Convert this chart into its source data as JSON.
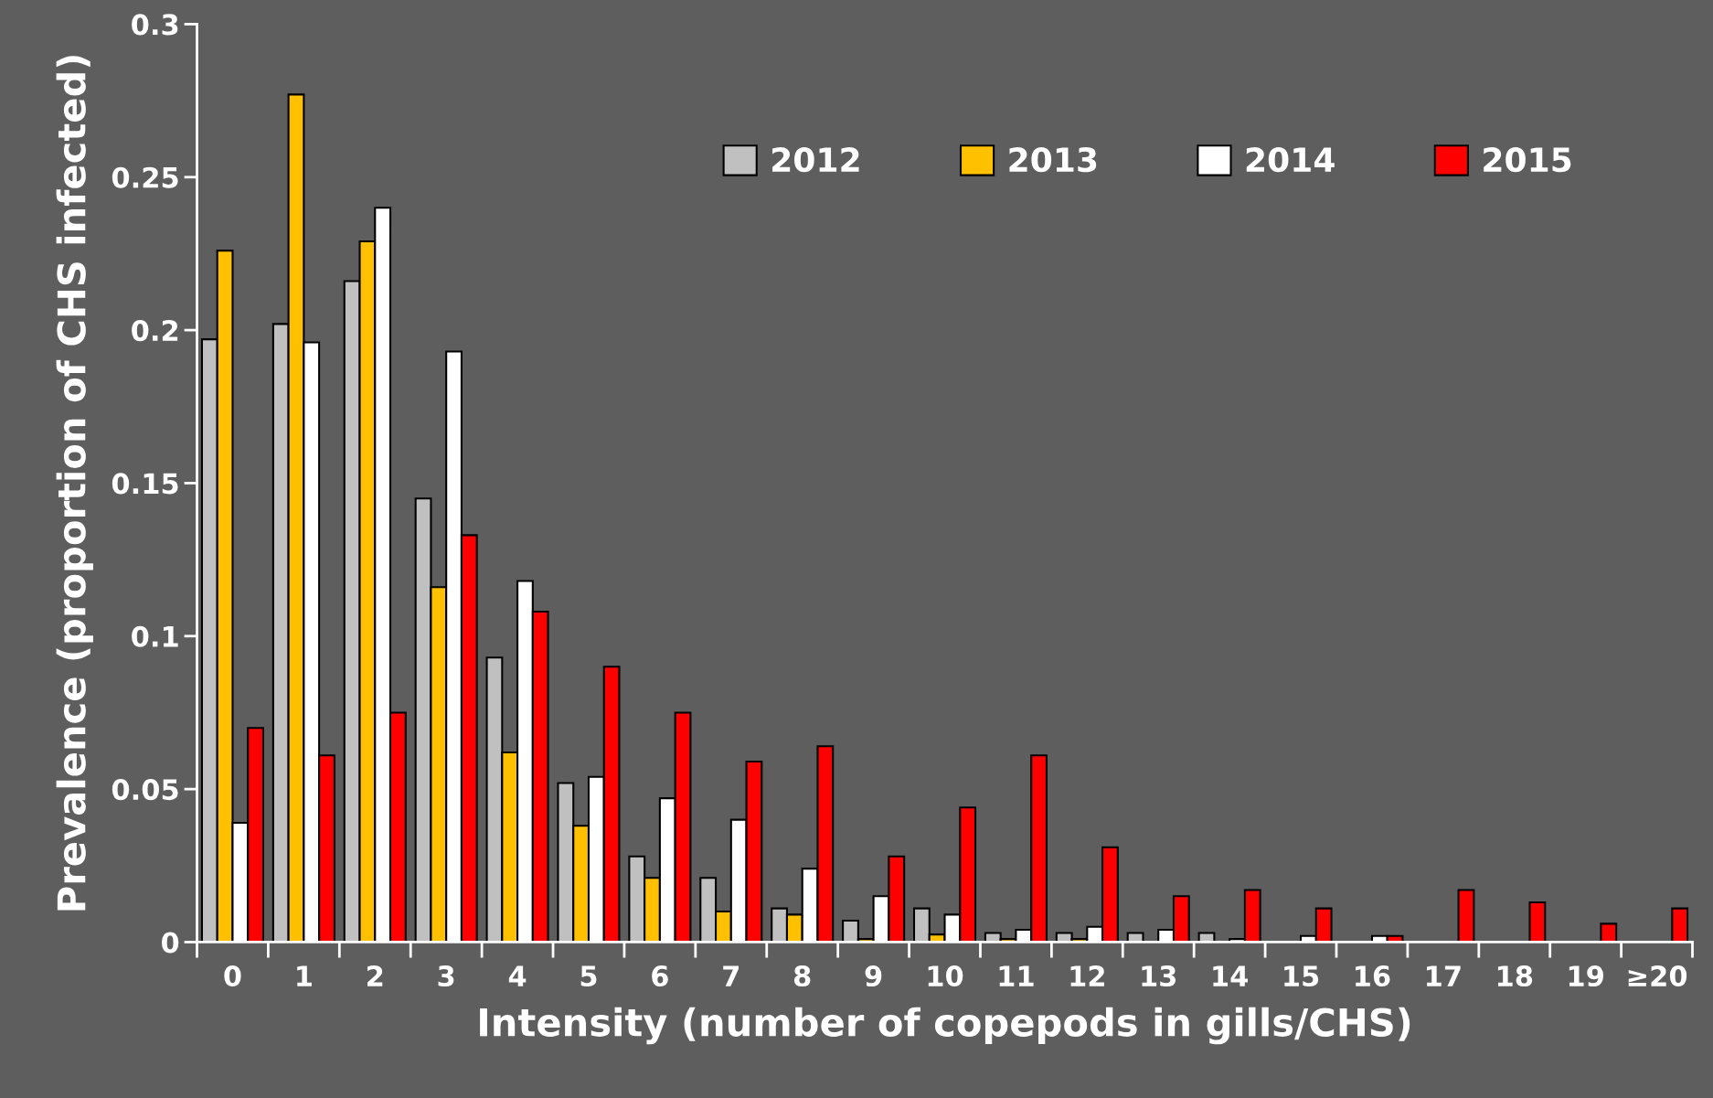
{
  "chart_data": {
    "type": "bar",
    "xlabel": "Intensity (number of copepods in gills/CHS)",
    "ylabel": "Prevalence (proportion of CHS infected)",
    "categories": [
      "0",
      "1",
      "2",
      "3",
      "4",
      "5",
      "6",
      "7",
      "8",
      "9",
      "10",
      "11",
      "12",
      "13",
      "14",
      "15",
      "16",
      "17",
      "18",
      "19",
      "≥20"
    ],
    "series": [
      {
        "name": "2012",
        "color": "#c0c0c0",
        "values": [
          0.197,
          0.202,
          0.216,
          0.145,
          0.093,
          0.052,
          0.028,
          0.021,
          0.011,
          0.007,
          0.011,
          0.003,
          0.003,
          0.003,
          0.003,
          0,
          0,
          0,
          0,
          null,
          0
        ]
      },
      {
        "name": "2013",
        "color": "#ffc000",
        "values": [
          0.226,
          0.277,
          0.229,
          0.116,
          0.062,
          0.038,
          0.021,
          0.01,
          0.009,
          0.001,
          0.0025,
          0.001,
          0.001,
          0,
          0,
          0,
          0,
          0,
          null,
          0,
          0
        ]
      },
      {
        "name": "2014",
        "color": "#ffffff",
        "values": [
          0.039,
          0.196,
          0.24,
          0.193,
          0.118,
          0.054,
          0.047,
          0.04,
          0.024,
          0.015,
          0.009,
          0.004,
          0.005,
          0.004,
          0.001,
          0.002,
          0.002,
          0,
          0,
          0,
          null
        ]
      },
      {
        "name": "2015",
        "color": "#ff0000",
        "values": [
          0.07,
          0.061,
          0.075,
          0.133,
          0.108,
          0.09,
          0.075,
          0.059,
          0.064,
          0.028,
          0.044,
          0.061,
          0.031,
          0.015,
          0.017,
          0.011,
          0.002,
          0.017,
          0.013,
          0.006,
          0.011
        ]
      }
    ],
    "ylim": [
      0,
      0.3
    ],
    "yticks": [
      {
        "value": 0,
        "label": "0"
      },
      0.05,
      0.1,
      0.15,
      0.2,
      0.25,
      0.3
    ],
    "grid": false,
    "legend": "top right"
  }
}
